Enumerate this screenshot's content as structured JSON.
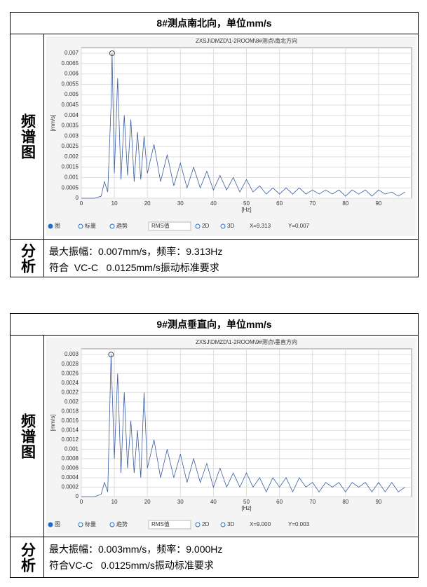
{
  "sections": [
    {
      "header": "8#测点南北向，单位mm/s",
      "chart_label": "频谱图",
      "analysis_label": "分析",
      "analysis": [
        "最大振幅：0.007mm/s，频率：9.313Hz",
        "符合  VC-C   0.0125mm/s振动标准要求"
      ],
      "chart_data": {
        "type": "line",
        "title": "ZXSJ\\DMZD\\1-2ROOM\\8#测点\\南北方向",
        "x_label": "[Hz]",
        "y_label": "[mm/s]",
        "x": [
          0,
          2,
          4,
          6,
          7,
          8,
          9,
          9.313,
          10,
          11,
          12,
          13,
          14,
          15,
          16,
          17,
          18,
          19,
          20,
          22,
          24,
          26,
          28,
          30,
          32,
          34,
          36,
          38,
          40,
          42,
          44,
          46,
          48,
          50,
          52,
          54,
          56,
          58,
          60,
          62,
          64,
          66,
          68,
          70,
          72,
          74,
          76,
          78,
          80,
          82,
          84,
          86,
          88,
          90,
          92,
          94,
          96,
          98
        ],
        "series": [
          {
            "color": "#3a5ba0",
            "values": [
              0,
              0,
              0,
              0.0001,
              0.0008,
              0.0003,
              0.0045,
              0.007,
              0.0012,
              0.0058,
              0.0009,
              0.004,
              0.0011,
              0.0038,
              0.0008,
              0.0032,
              0.0009,
              0.003,
              0.0012,
              0.0026,
              0.0008,
              0.0021,
              0.0006,
              0.0017,
              0.0005,
              0.0015,
              0.0005,
              0.0013,
              0.0004,
              0.0011,
              0.0004,
              0.001,
              0.0003,
              0.0009,
              0.0003,
              0.0006,
              0.0002,
              0.0005,
              0.0002,
              0.0005,
              0.0002,
              0.0005,
              0.0002,
              0.0004,
              0.0002,
              0.0004,
              0.0002,
              0.0004,
              0.0001,
              0.0004,
              0.0002,
              0.0004,
              0.0001,
              0.0004,
              0.0002,
              0.0003,
              0.0001,
              0.0003
            ]
          }
        ],
        "xlim": [
          0,
          100
        ],
        "ylim": [
          0,
          0.00727
        ],
        "xticks": [
          0,
          10,
          20,
          30,
          40,
          50,
          60,
          70,
          80,
          90
        ],
        "yticks": [
          0,
          0.0005,
          0.001,
          0.0015,
          0.002,
          0.0025,
          0.003,
          0.0035,
          0.004,
          0.0045,
          0.005,
          0.0055,
          0.006,
          0.0065,
          0.007
        ],
        "grid": true,
        "cursor": {
          "x": 9.313,
          "y": 0.007
        },
        "controls": [
          "图",
          "标量",
          "趋势",
          "RMS值",
          "2D",
          "3D",
          "X=9.313",
          "Y=0.007"
        ]
      }
    },
    {
      "header": "9#测点垂直向，单位mm/s",
      "chart_label": "频谱图",
      "analysis_label": "分析",
      "analysis": [
        "最大振幅：0.003mm/s，频率：9.000Hz",
        "符合VC-C   0.0125mm/s振动标准要求"
      ],
      "chart_data": {
        "type": "line",
        "title": "ZXSJ\\DMZD\\1-2ROOM\\9#测点\\垂直方向",
        "x_label": "[Hz]",
        "y_label": "[mm/s]",
        "x": [
          0,
          2,
          4,
          6,
          7,
          8,
          9,
          10,
          11,
          12,
          13,
          14,
          15,
          16,
          17,
          18,
          19,
          20,
          22,
          24,
          26,
          28,
          30,
          32,
          34,
          36,
          38,
          40,
          42,
          44,
          46,
          48,
          50,
          52,
          54,
          56,
          58,
          60,
          62,
          64,
          66,
          68,
          70,
          72,
          74,
          76,
          78,
          80,
          82,
          84,
          86,
          88,
          90,
          92,
          94,
          96,
          98
        ],
        "series": [
          {
            "color": "#3a5ba0",
            "values": [
              0,
              0,
              0,
              5e-05,
              0.0003,
              0.0001,
              0.003,
              0.0008,
              0.0026,
              0.0005,
              0.0022,
              0.0006,
              0.0016,
              0.0005,
              0.0014,
              0.0004,
              0.0022,
              0.0006,
              0.0012,
              0.0004,
              0.001,
              0.0004,
              0.0009,
              0.0003,
              0.0008,
              0.0003,
              0.0007,
              0.0002,
              0.0006,
              0.0002,
              0.0005,
              0.0002,
              0.0005,
              0.0002,
              0.0004,
              0.0001,
              0.0004,
              0.0002,
              0.0004,
              0.0001,
              0.0004,
              0.0002,
              0.0003,
              0.0001,
              0.0003,
              0.0002,
              0.0003,
              0.0001,
              0.0003,
              0.0002,
              0.0003,
              0.0001,
              0.0003,
              0.0001,
              0.0003,
              0.0001,
              0.0002
            ]
          }
        ],
        "xlim": [
          0,
          100
        ],
        "ylim": [
          0,
          0.00312
        ],
        "xticks": [
          0,
          10,
          20,
          30,
          40,
          50,
          60,
          70,
          80,
          90
        ],
        "yticks": [
          0,
          0.0002,
          0.0004,
          0.0006,
          0.0008,
          0.001,
          0.0012,
          0.0014,
          0.0016,
          0.0018,
          0.002,
          0.0022,
          0.0024,
          0.0026,
          0.0028,
          0.003
        ],
        "grid": true,
        "cursor": {
          "x": 9,
          "y": 0.003
        },
        "controls": [
          "图",
          "标量",
          "趋势",
          "RMS值",
          "2D",
          "3D",
          "X=9.000",
          "Y=0.003"
        ]
      }
    }
  ]
}
